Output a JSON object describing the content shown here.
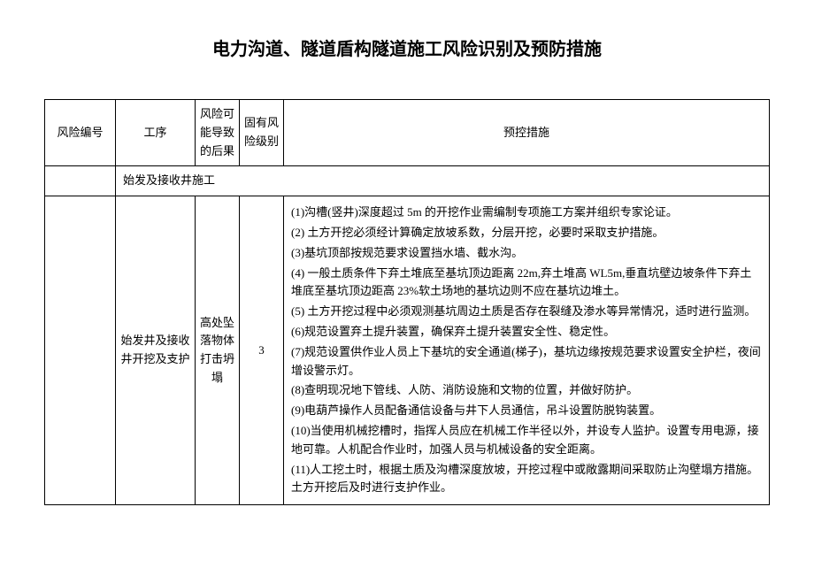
{
  "title": "电力沟道、隧道盾构隧道施工风险识别及预防措施",
  "headers": {
    "risk_id": "风险编号",
    "process": "工序",
    "consequence": "风险可能导致的后果",
    "level": "固有风险级别",
    "measures": "预控措施"
  },
  "section": "始发及接收井施工",
  "row": {
    "risk_id": "",
    "process": "始发井及接收井开挖及支护",
    "consequence": "高处坠落物体打击坍塌",
    "level": "3",
    "measures": [
      "(1)沟槽(竖井)深度超过 5m 的开挖作业需编制专项施工方案并组织专家论证。",
      "(2)  土方开挖必须经计算确定放坡系数，分层开挖，必要时采取支护措施。",
      "(3)基坑顶部按规范要求设置挡水墙、截水沟。",
      "(4)  一般土质条件下弃土堆底至基坑顶边距离 22m,弃土堆高 WL5m,垂直坑壁边坡条件下弃土堆底至基坑顶边距高 23%软土场地的基坑边则不应在基坑边堆土。",
      "(5)  土方开挖过程中必须观测基坑周边土质是否存在裂缝及渗水等异常情况，适时进行监测。",
      "(6)规范设置弃土提升装置，确保弃土提升装置安全性、稳定性。",
      "(7)规范设置供作业人员上下基坑的安全通道(梯子)，基坑边缘按规范要求设置安全护栏，夜间增设警示灯。",
      "(8)查明现况地下管线、人防、消防设施和文物的位置，并做好防护。",
      "(9)电葫芦操作人员配备通信设备与井下人员通信，吊斗设置防脱钩装置。",
      "(10)当使用机械挖槽时，指挥人员应在机械工作半径以外，并设专人监护。设置专用电源，接地可靠。人机配合作业时，加强人员与机械设备的安全距离。",
      "(11)人工挖土时，根据土质及沟槽深度放坡，开挖过程中或敞露期间采取防止沟壁塌方措施。土方开挖后及时进行支护作业。"
    ]
  }
}
